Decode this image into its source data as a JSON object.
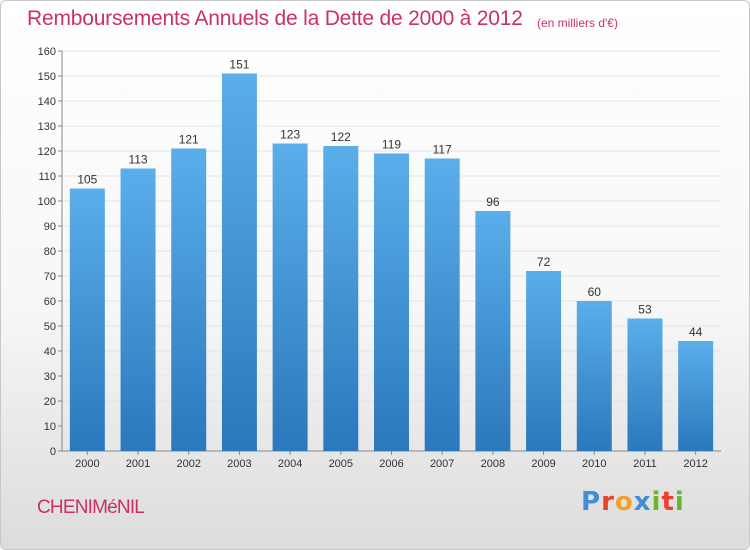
{
  "header": {
    "title": "Remboursements Annuels de la Dette de 2000 à 2012",
    "unit": "(en milliers d'€)"
  },
  "footer": {
    "commune": "CHENIMéNIL",
    "brand_letters": [
      "P",
      "r",
      "o",
      "x",
      "i",
      "t",
      "i"
    ],
    "brand_colors": [
      "#3d8fd6",
      "#e9412a",
      "#f2a12b",
      "#3d8fd6",
      "#6cb52d",
      "#e9412a",
      "#6cb52d"
    ]
  },
  "colors": {
    "bar_top": "#5aaeea",
    "bar_bottom": "#2a78bd",
    "text": "#cc2f6a"
  },
  "chart_data": {
    "type": "bar",
    "title": "Remboursements Annuels de la Dette de 2000 à 2012",
    "ylabel": "",
    "xlabel": "",
    "categories": [
      "2000",
      "2001",
      "2002",
      "2003",
      "2004",
      "2005",
      "2006",
      "2007",
      "2008",
      "2009",
      "2010",
      "2011",
      "2012"
    ],
    "values": [
      105,
      113,
      121,
      151,
      123,
      122,
      119,
      117,
      96,
      72,
      60,
      53,
      44
    ],
    "ylim": [
      0,
      160
    ],
    "yticks": [
      0,
      10,
      20,
      30,
      40,
      50,
      60,
      70,
      80,
      90,
      100,
      110,
      120,
      130,
      140,
      150,
      160
    ],
    "grid": true
  }
}
